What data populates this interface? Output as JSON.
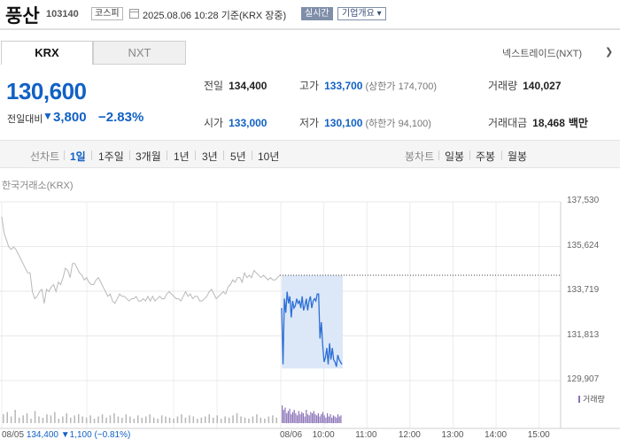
{
  "stock": {
    "name": "풍산",
    "code": "103140",
    "market_badge": "코스피",
    "timestamp": "2025.08.06 10:28",
    "basis": "기준(KRX 장중)",
    "realtime_badge": "실시간",
    "overview_label": "기업개요"
  },
  "market_tabs": [
    {
      "label": "KRX",
      "active": true
    },
    {
      "label": "NXT",
      "active": false
    }
  ],
  "nextrade_link": "넥스트레이드(NXT)",
  "quote": {
    "price": "130,600",
    "diff_label": "전일대비",
    "diff_arrow": "▼",
    "diff_value": "3,800",
    "diff_rate": "−2.83%"
  },
  "info": {
    "prev_close_label": "전일",
    "prev_close": "134,400",
    "high_label": "고가",
    "high": "133,700",
    "upper_limit": "(상한가 174,700)",
    "volume_label": "거래량",
    "volume": "140,027",
    "open_label": "시가",
    "open": "133,000",
    "low_label": "저가",
    "low": "130,100",
    "lower_limit": "(하한가 94,100)",
    "amount_label": "거래대금",
    "amount": "18,468",
    "amount_unit": "백만"
  },
  "period_bar": {
    "line_chart_label": "선차트",
    "line_periods": [
      "1일",
      "1주일",
      "3개월",
      "1년",
      "3년",
      "5년",
      "10년"
    ],
    "active_period": "1일",
    "candle_chart_label": "봉차트",
    "candle_periods": [
      "일봉",
      "주봉",
      "월봉"
    ]
  },
  "chart": {
    "source": "한국거래소(KRX)",
    "volume_legend": "거래량",
    "prev_day_summary": {
      "date": "08/05",
      "price": "134,400",
      "arrow": "▼",
      "change": "1,100",
      "rate": "(−0.81%)"
    },
    "colors": {
      "prev_line": "#b9b9b9",
      "today_line": "#2d6ed6",
      "today_fill": "#dce8f8",
      "volume_prev": "#b7b7b7",
      "volume_today": "#8b73b8",
      "ref_line": "#444444"
    }
  },
  "chart_data": {
    "type": "line",
    "y_ticks": [
      "137,530",
      "135,624",
      "133,719",
      "131,813",
      "129,907"
    ],
    "ylim": [
      129907,
      137530
    ],
    "x_ticks": [
      "08/06",
      "10:00",
      "11:00",
      "12:00",
      "13:00",
      "14:00",
      "15:00"
    ],
    "reference_price": 134400,
    "series": [
      {
        "name": "",
        "date": "08/05",
        "values": [
          136900,
          136200,
          135900,
          135600,
          135500,
          135600,
          135500,
          135300,
          135100,
          134900,
          134700,
          134500,
          134500,
          133700,
          133400,
          133500,
          133700,
          133800,
          133200,
          133800,
          133700,
          133900,
          134000,
          133700,
          134100,
          134000,
          134300,
          134700,
          134600,
          134300,
          134900,
          134900,
          134700,
          134500,
          134400,
          134200,
          134300,
          134100,
          134000,
          134000,
          134200,
          134300,
          134100,
          133900,
          133700,
          133500,
          133600,
          133300,
          133200,
          133400,
          133600,
          133500,
          133500,
          133400,
          133300,
          133400,
          133400,
          133500,
          133300,
          133300,
          133400,
          133300,
          133500,
          133300,
          133500,
          133300,
          133400,
          133500,
          133400,
          133400,
          133600,
          133700,
          133600,
          133500,
          133400,
          133400,
          133300,
          133500,
          133700,
          133500,
          133600,
          133400,
          133500,
          133500,
          133300,
          133300,
          133400,
          133500,
          133700,
          133800,
          133600,
          133400,
          133500,
          133600,
          133700,
          133600,
          133900,
          134000,
          134200,
          134100,
          134300,
          134300,
          134100,
          134500,
          134300,
          134400,
          134300,
          134600,
          134500,
          134400,
          134300,
          134400,
          134300,
          134200,
          134300,
          134200,
          134200,
          134300,
          134400
        ]
      },
      {
        "name": "",
        "date": "08/06",
        "values": [
          133000,
          130600,
          133400,
          132800,
          133700,
          133200,
          133500,
          132600,
          133300,
          133000,
          133100,
          133400,
          133200,
          133300,
          133000,
          133500,
          132900,
          133100,
          133400,
          132900,
          133300,
          133500,
          133000,
          133300,
          133400,
          133300,
          133600,
          133600,
          131700,
          132400,
          131400,
          130700,
          130900,
          131300,
          130600,
          131500,
          130800,
          131300,
          130800,
          130700,
          130500,
          131000,
          130800,
          130700,
          130600
        ]
      }
    ],
    "volume": {
      "prev_day": [
        8,
        10,
        6,
        12,
        5,
        7,
        9,
        4,
        11,
        6,
        5,
        8,
        7,
        10,
        4,
        6,
        9,
        5,
        7,
        8,
        6,
        5,
        7,
        4,
        6,
        8,
        5,
        7,
        9,
        6,
        5,
        8,
        6,
        4,
        7,
        5,
        6,
        8,
        5,
        4,
        7,
        6,
        5,
        4,
        6,
        8,
        5,
        7,
        6,
        4,
        5,
        6,
        8,
        5,
        7,
        4,
        6,
        5,
        7,
        9,
        6,
        5,
        4,
        6,
        8,
        5,
        4,
        6,
        7,
        5
      ],
      "today": [
        16,
        12,
        14,
        9,
        11,
        13,
        8,
        10,
        12,
        9,
        7,
        11,
        8,
        10,
        9,
        6,
        12,
        8,
        7,
        10,
        9,
        11,
        8,
        7,
        9,
        6,
        8,
        10,
        7,
        5,
        9,
        6,
        8,
        5,
        7,
        6,
        5,
        8,
        6,
        7
      ]
    }
  }
}
